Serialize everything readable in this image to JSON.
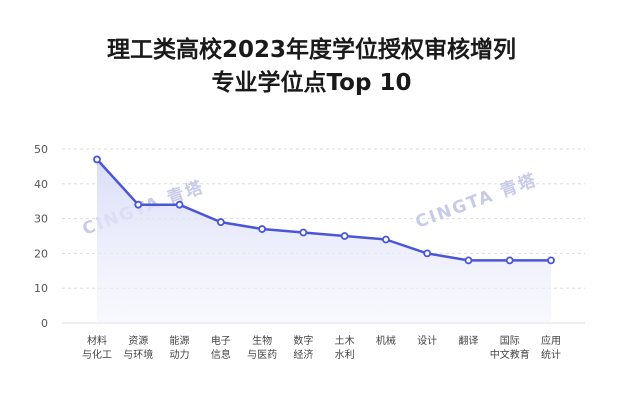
{
  "title_line1": "理工类高校2023年度学位授权审核增列",
  "title_line2": "专业学位点Top 10",
  "watermark": "CINGTA 青塔",
  "colors": {
    "line": "#4a56d8",
    "fill": "#e4e6f9",
    "grid": "#dddddd",
    "marker_fill": "#ffffff"
  },
  "chart_data": {
    "type": "area",
    "categories": [
      [
        "材料",
        "与化工"
      ],
      [
        "资源",
        "与环境"
      ],
      [
        "能源",
        "动力"
      ],
      [
        "电子",
        "信息"
      ],
      [
        "生物",
        "与医药"
      ],
      [
        "数字",
        "经济"
      ],
      [
        "土木",
        "水利"
      ],
      [
        "机械"
      ],
      [
        "设计"
      ],
      [
        "翻译"
      ],
      [
        "国际",
        "中文教育"
      ],
      [
        "应用",
        "统计"
      ]
    ],
    "values": [
      47,
      34,
      34,
      29,
      27,
      26,
      25,
      24,
      20,
      18,
      18,
      18
    ],
    "yticks": [
      0,
      10,
      20,
      30,
      40,
      50
    ],
    "ylim": [
      0,
      50
    ],
    "grid": true
  }
}
